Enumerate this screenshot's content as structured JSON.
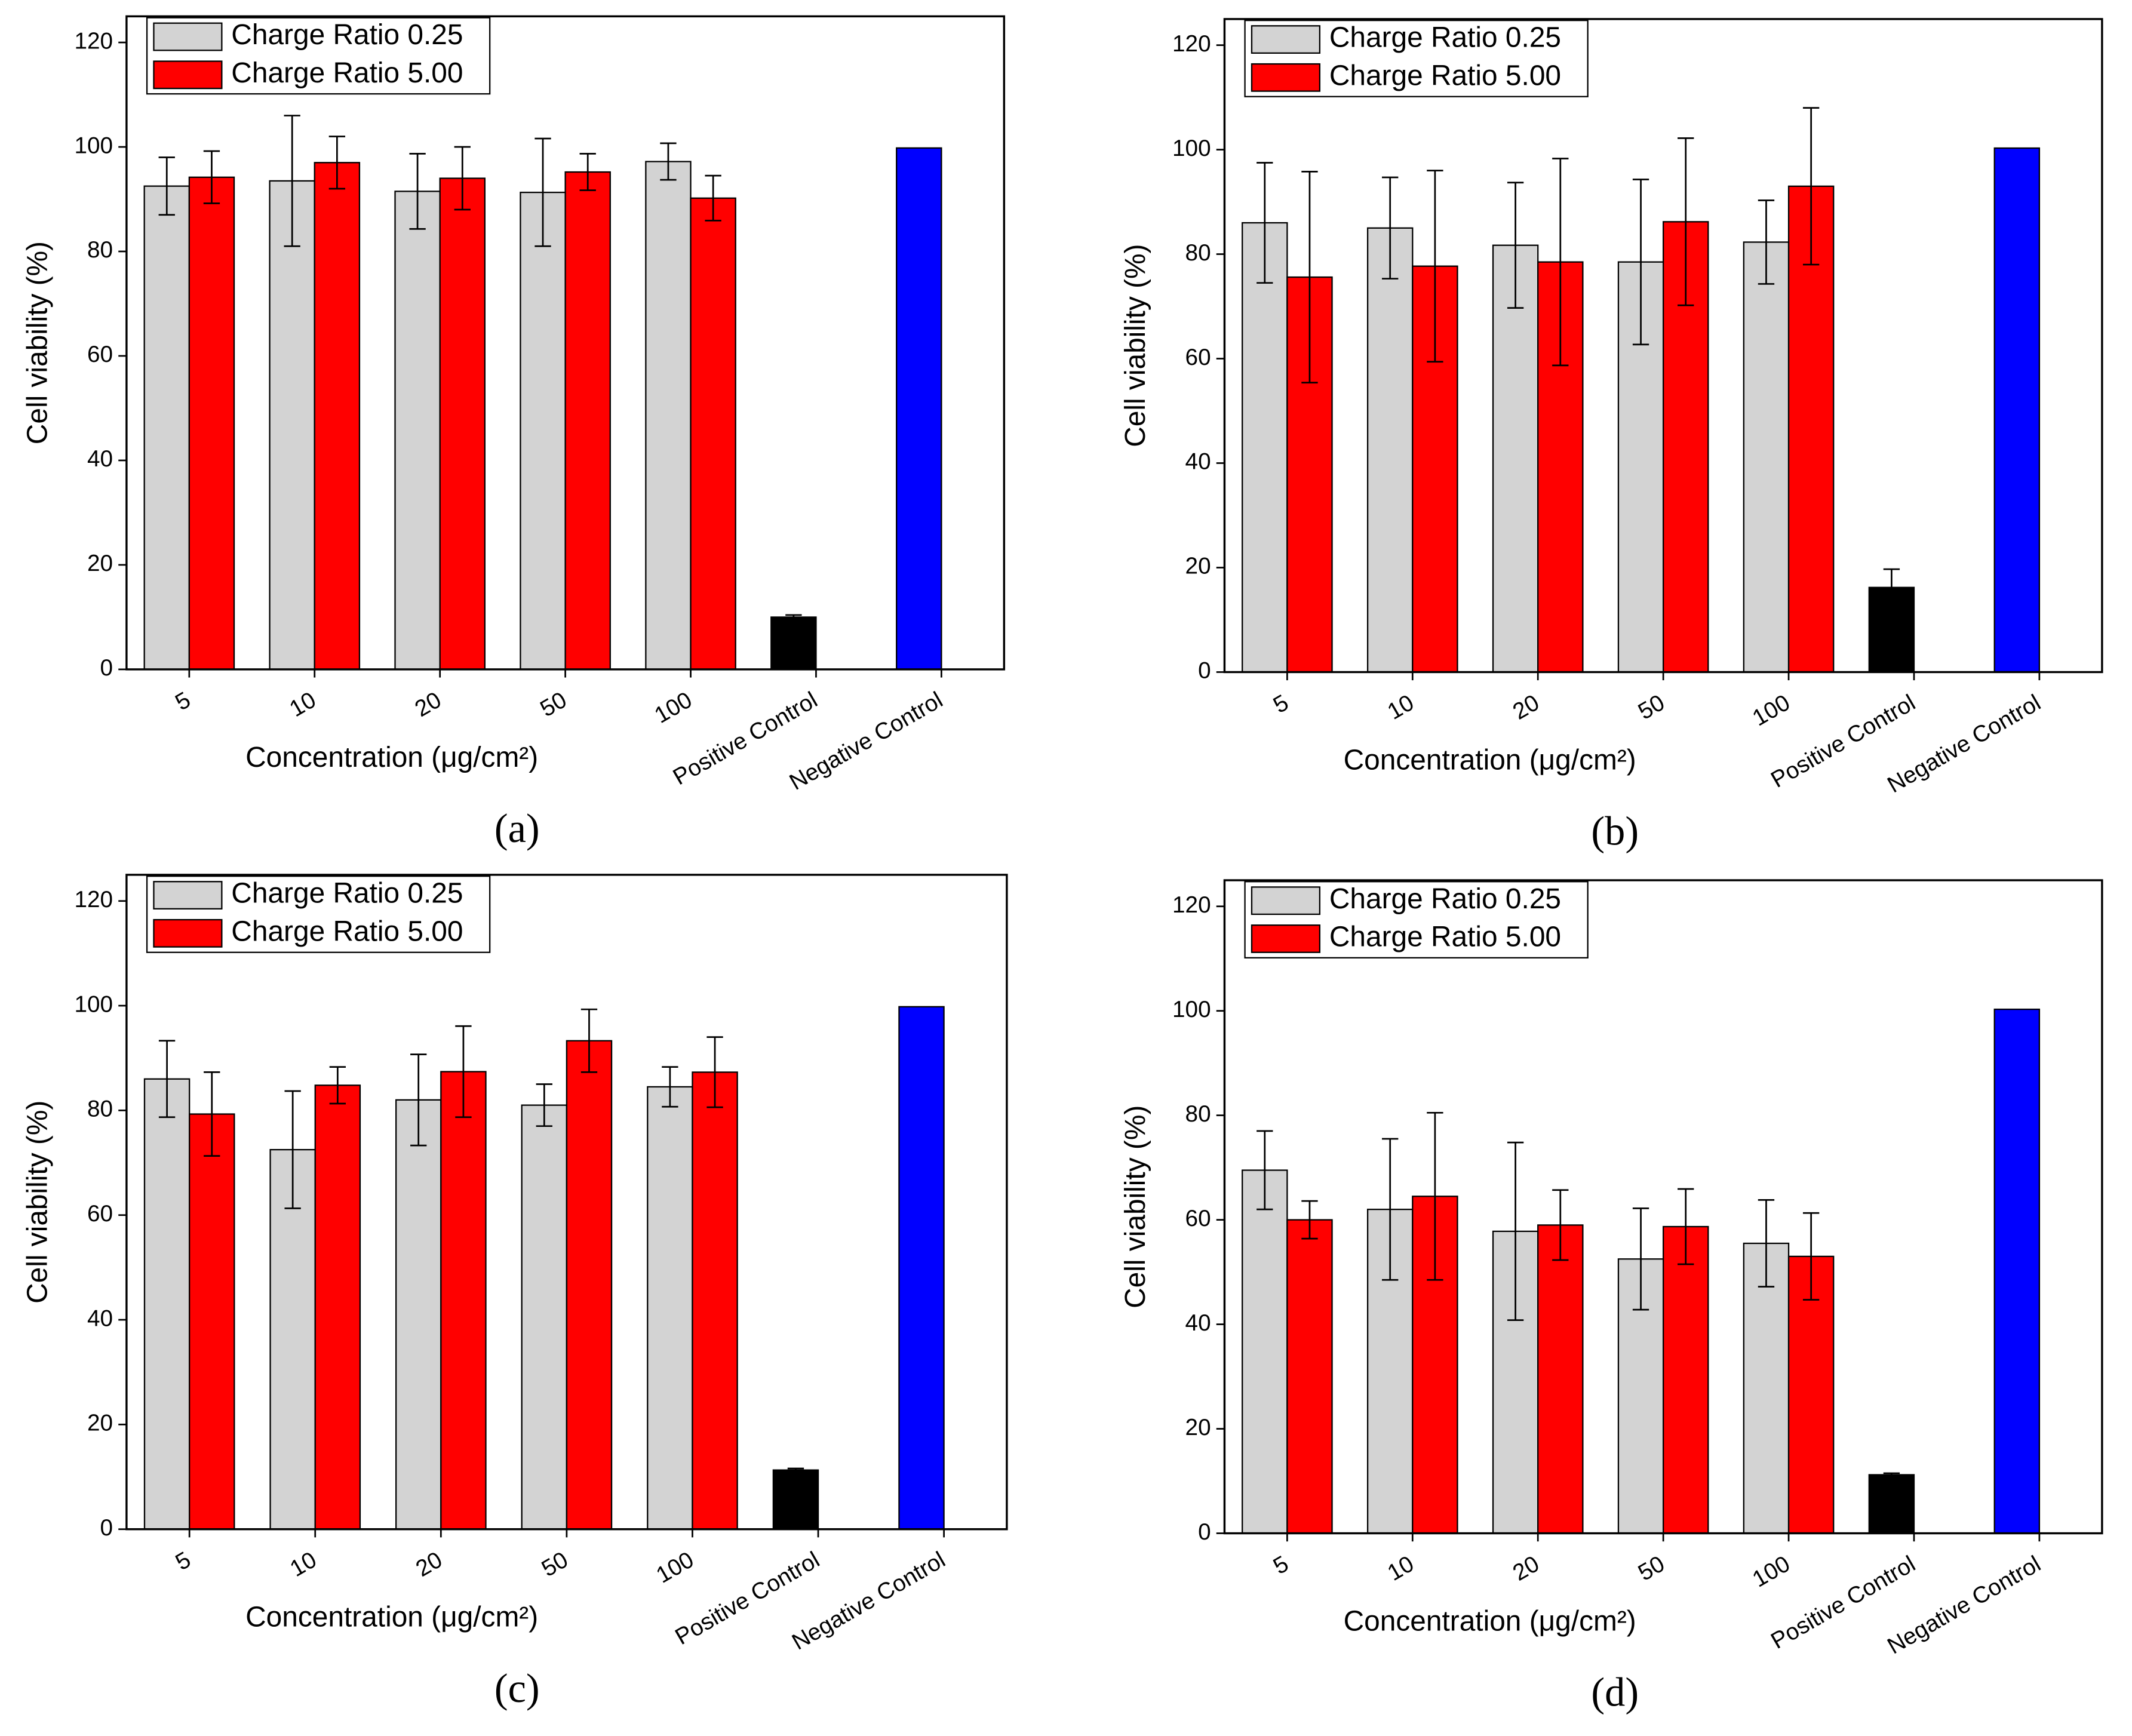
{
  "chart_data": [
    {
      "type": "bar",
      "label": "(a)",
      "x_label": "Concentration (μg/cm²)",
      "y_label": "Cell viability (%)",
      "categories": [
        "5",
        "10",
        "20",
        "50",
        "100",
        "Positive Control",
        "Negative Control"
      ],
      "ylim": [
        0,
        125
      ],
      "yticks": [
        0,
        20,
        40,
        60,
        80,
        100,
        120
      ],
      "series": [
        {
          "name": "Charge Ratio 0.25",
          "color": "#d3d3d3",
          "values": [
            92.5,
            93.5,
            91.5,
            91.3,
            97.2,
            null,
            null
          ],
          "errors": [
            5.5,
            12.5,
            7.2,
            10.3,
            3.5,
            null,
            null
          ]
        },
        {
          "name": "Charge Ratio 5.00",
          "color": "#ff0000",
          "values": [
            94.2,
            97,
            94,
            95.2,
            90.2,
            null,
            null
          ],
          "errors": [
            5,
            5,
            6,
            3.5,
            4.3,
            null,
            null
          ]
        },
        {
          "colors": [
            null,
            null,
            null,
            null,
            null,
            "#000000",
            "#0000ff"
          ],
          "values": [
            null,
            null,
            null,
            null,
            null,
            10,
            99.8
          ],
          "errors": [
            null,
            null,
            null,
            null,
            null,
            0.4,
            null
          ]
        }
      ]
    },
    {
      "type": "bar",
      "label": "(b)",
      "x_label": "Concentration (μg/cm²)",
      "y_label": "Cell viability (%)",
      "categories": [
        "5",
        "10",
        "20",
        "50",
        "100",
        "Positive Control",
        "Negative Control"
      ],
      "ylim": [
        0,
        125
      ],
      "yticks": [
        0,
        20,
        40,
        60,
        80,
        100,
        120
      ],
      "series": [
        {
          "name": "Charge Ratio 0.25",
          "color": "#d3d3d3",
          "values": [
            86,
            85,
            81.7,
            78.5,
            82.3,
            null,
            null
          ],
          "errors": [
            11.5,
            9.7,
            12,
            15.8,
            8,
            null,
            null
          ]
        },
        {
          "name": "Charge Ratio 5.00",
          "color": "#ff0000",
          "values": [
            75.6,
            77.7,
            78.5,
            86.2,
            93,
            null,
            null
          ],
          "errors": [
            20.2,
            18.3,
            19.8,
            16,
            15,
            null,
            null
          ]
        },
        {
          "colors": [
            null,
            null,
            null,
            null,
            null,
            "#000000",
            "#0000ff"
          ],
          "values": [
            null,
            null,
            null,
            null,
            null,
            16.2,
            100.3
          ],
          "errors": [
            null,
            null,
            null,
            null,
            null,
            3.5,
            null
          ]
        }
      ]
    },
    {
      "type": "bar",
      "label": "(c)",
      "x_label": "Concentration (μg/cm²)",
      "y_label": "Cell viability (%)",
      "categories": [
        "5",
        "10",
        "20",
        "50",
        "100",
        "Positive Control",
        "Negative Control"
      ],
      "ylim": [
        0,
        125
      ],
      "yticks": [
        0,
        20,
        40,
        60,
        80,
        100,
        120
      ],
      "series": [
        {
          "name": "Charge Ratio 0.25",
          "color": "#d3d3d3",
          "values": [
            86,
            72.5,
            82,
            81,
            84.5,
            null,
            null
          ],
          "errors": [
            7.3,
            11.2,
            8.7,
            4,
            3.8,
            null,
            null
          ]
        },
        {
          "name": "Charge Ratio 5.00",
          "color": "#ff0000",
          "values": [
            79.3,
            84.8,
            87.4,
            93.3,
            87.3,
            null,
            null
          ],
          "errors": [
            8,
            3.5,
            8.7,
            6,
            6.7,
            null,
            null
          ]
        },
        {
          "colors": [
            null,
            null,
            null,
            null,
            null,
            "#000000",
            "#0000ff"
          ],
          "values": [
            null,
            null,
            null,
            null,
            null,
            11.3,
            99.8
          ],
          "errors": [
            null,
            null,
            null,
            null,
            null,
            0.3,
            null
          ]
        }
      ]
    },
    {
      "type": "bar",
      "label": "(d)",
      "x_label": "Concentration (μg/cm²)",
      "y_label": "Cell viability (%)",
      "categories": [
        "5",
        "10",
        "20",
        "50",
        "100",
        "Positive Control",
        "Negative Control"
      ],
      "ylim": [
        0,
        125
      ],
      "yticks": [
        0,
        20,
        40,
        60,
        80,
        100,
        120
      ],
      "series": [
        {
          "name": "Charge Ratio 0.25",
          "color": "#d3d3d3",
          "values": [
            69.5,
            62,
            57.8,
            52.5,
            55.5,
            null,
            null
          ],
          "errors": [
            7.5,
            13.5,
            17,
            9.7,
            8.3,
            null,
            null
          ]
        },
        {
          "name": "Charge Ratio 5.00",
          "color": "#ff0000",
          "values": [
            60,
            64.5,
            59,
            58.7,
            53,
            null,
            null
          ],
          "errors": [
            3.6,
            16,
            6.7,
            7.2,
            8.3,
            null,
            null
          ]
        },
        {
          "colors": [
            null,
            null,
            null,
            null,
            null,
            "#000000",
            "#0000ff"
          ],
          "values": [
            null,
            null,
            null,
            null,
            null,
            11.2,
            100.3
          ],
          "errors": [
            null,
            null,
            null,
            null,
            null,
            0.3,
            null
          ]
        }
      ]
    }
  ]
}
